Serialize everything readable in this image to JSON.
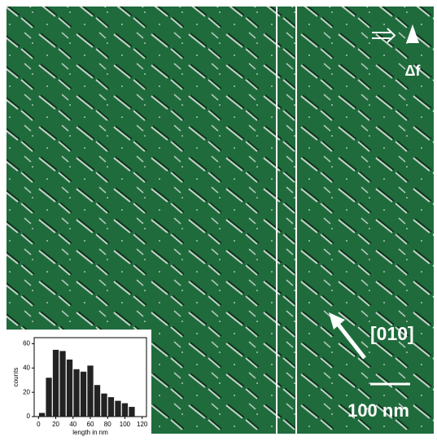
{
  "chart_data": {
    "type": "histogram",
    "xlabel": "length in nm",
    "ylabel": "counts",
    "bins": [
      0,
      8,
      16,
      24,
      32,
      40,
      48,
      56,
      64,
      72,
      80,
      88,
      96,
      104,
      112
    ],
    "values": [
      3,
      32,
      55,
      54,
      47,
      39,
      37,
      42,
      26,
      19,
      16,
      13,
      11,
      8
    ],
    "color": "#222222",
    "xlim": [
      -5,
      125
    ],
    "xticks": [
      0,
      20,
      40,
      60,
      80,
      100,
      120
    ],
    "ylim": [
      0,
      65
    ],
    "yticks": [
      0,
      20,
      40,
      60
    ]
  },
  "annotations": {
    "direction": "[010]",
    "scale": "100 nm",
    "signal": "Δf"
  }
}
